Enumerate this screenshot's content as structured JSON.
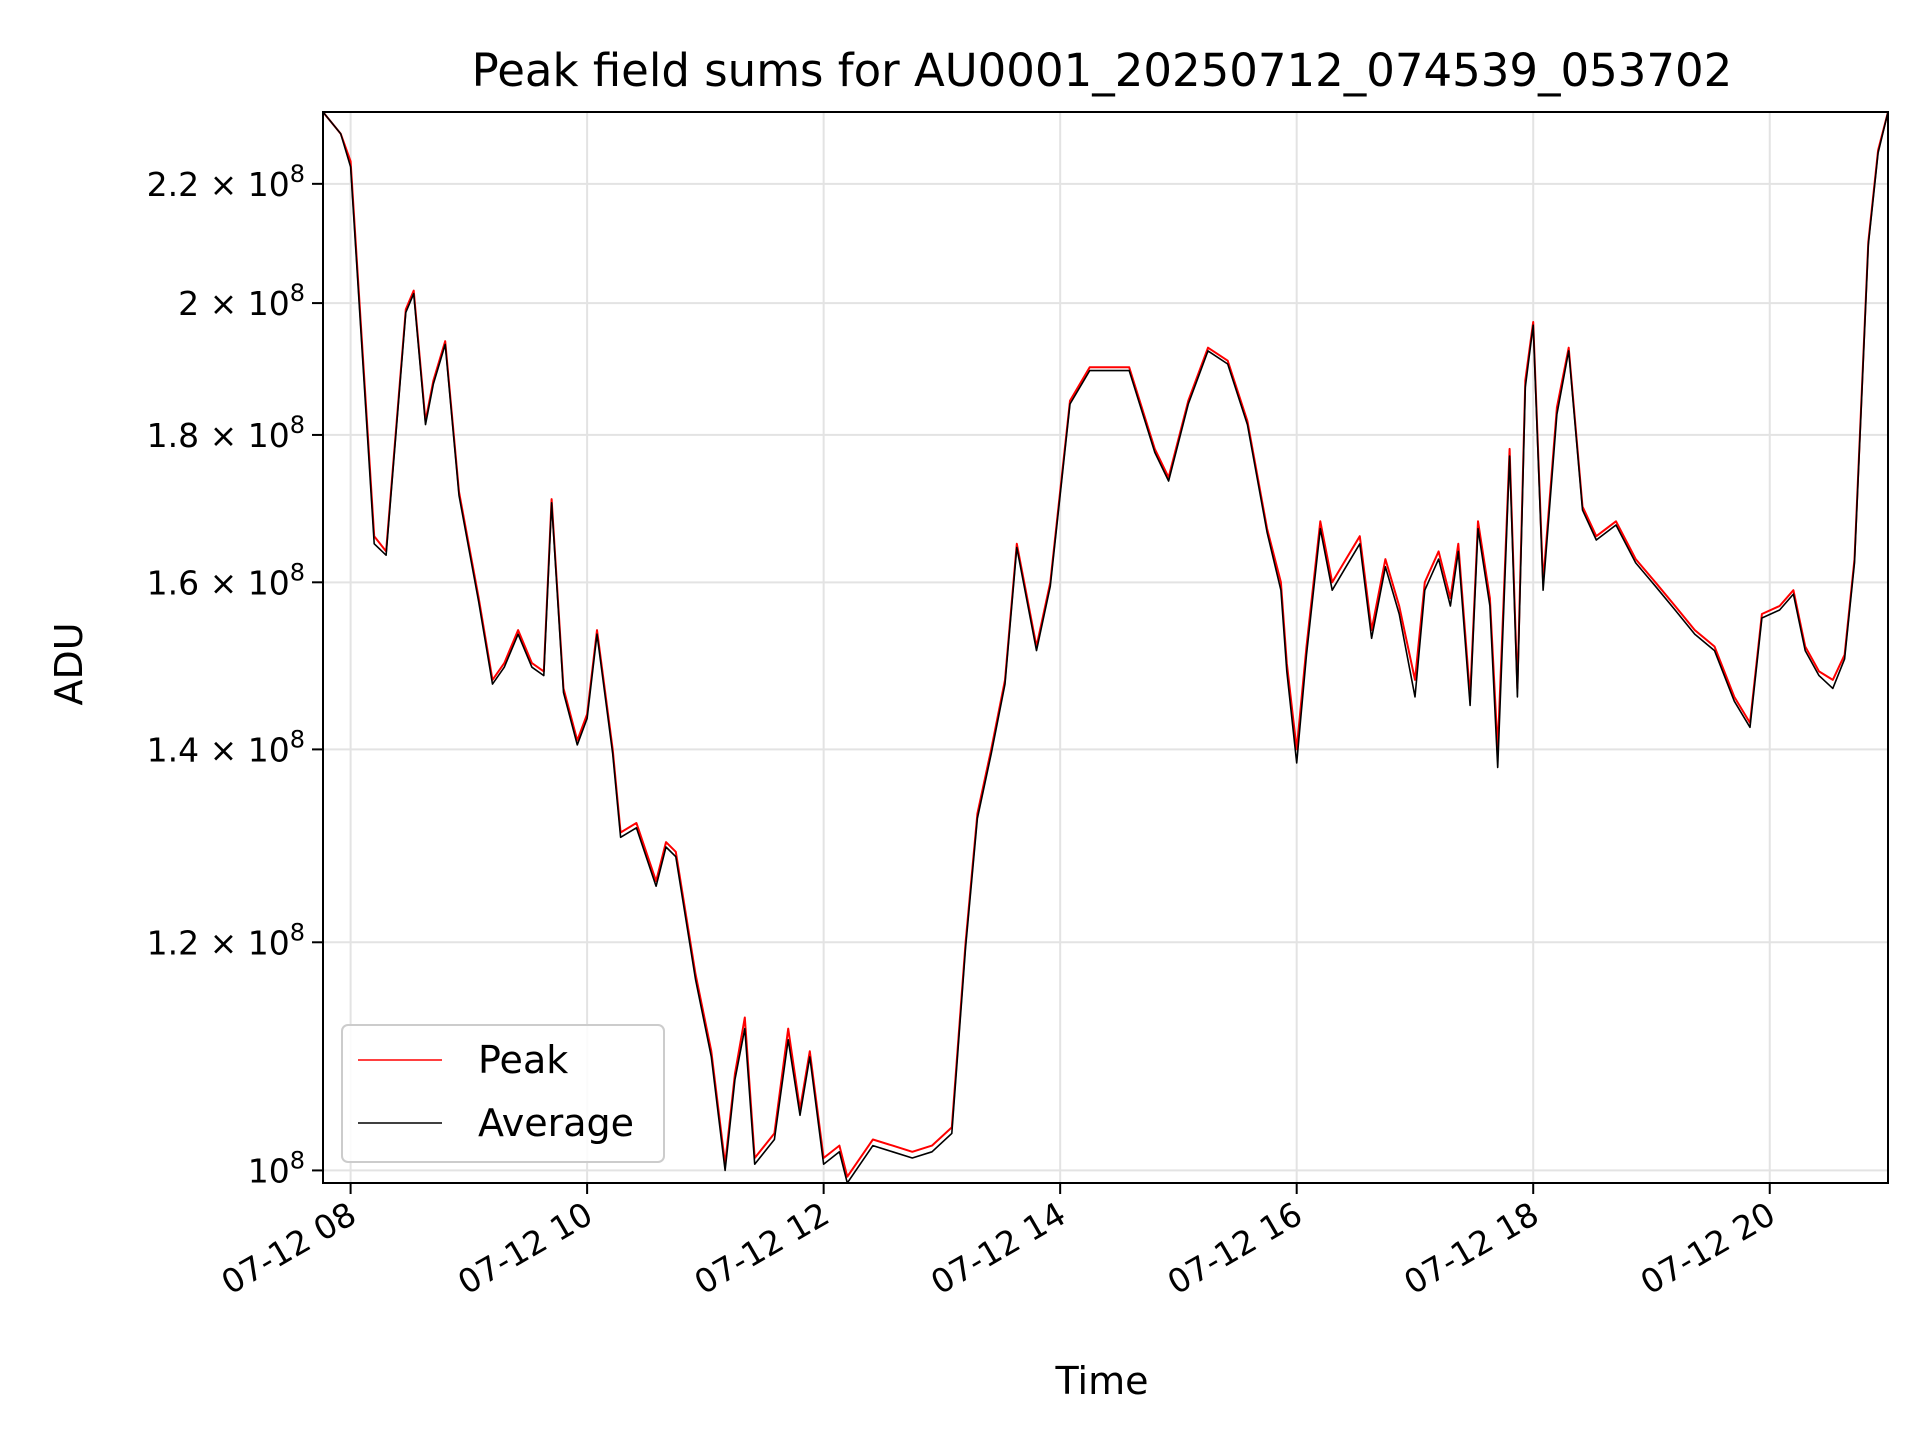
{
  "chart_data": {
    "type": "line",
    "title": "Peak field sums for AU0001_20250712_074539_053702",
    "xlabel": "Time",
    "ylabel": "ADU",
    "yscale": "log",
    "grid": true,
    "legend_placement": "lower-left",
    "xlim": [
      "07-12 07:46",
      "07-12 21:00"
    ],
    "ylim": [
      99000000,
      233000000
    ],
    "x_ticks": [
      {
        "value": "07-12 08:00",
        "label": "07-12 08"
      },
      {
        "value": "07-12 10:00",
        "label": "07-12 10"
      },
      {
        "value": "07-12 12:00",
        "label": "07-12 12"
      },
      {
        "value": "07-12 14:00",
        "label": "07-12 14"
      },
      {
        "value": "07-12 16:00",
        "label": "07-12 16"
      },
      {
        "value": "07-12 18:00",
        "label": "07-12 18"
      },
      {
        "value": "07-12 20:00",
        "label": "07-12 20"
      }
    ],
    "y_ticks": [
      {
        "value": 100000000,
        "mantissa": "",
        "exp": "8"
      },
      {
        "value": 120000000,
        "mantissa": "1.2",
        "exp": "8"
      },
      {
        "value": 140000000,
        "mantissa": "1.4",
        "exp": "8"
      },
      {
        "value": 160000000,
        "mantissa": "1.6",
        "exp": "8"
      },
      {
        "value": 180000000,
        "mantissa": "1.8",
        "exp": "8"
      },
      {
        "value": 200000000,
        "mantissa": "2",
        "exp": "8"
      },
      {
        "value": 220000000,
        "mantissa": "2.2",
        "exp": "8"
      }
    ],
    "series": [
      {
        "name": "Peak",
        "color": "#ff0000",
        "x": [
          "07-12 07:46",
          "07-12 07:55",
          "07-12 08:00",
          "07-12 08:12",
          "07-12 08:18",
          "07-12 08:28",
          "07-12 08:32",
          "07-12 08:38",
          "07-12 08:42",
          "07-12 08:48",
          "07-12 08:55",
          "07-12 09:05",
          "07-12 09:12",
          "07-12 09:18",
          "07-12 09:25",
          "07-12 09:32",
          "07-12 09:38",
          "07-12 09:42",
          "07-12 09:48",
          "07-12 09:55",
          "07-12 10:00",
          "07-12 10:05",
          "07-12 10:13",
          "07-12 10:17",
          "07-12 10:25",
          "07-12 10:35",
          "07-12 10:40",
          "07-12 10:45",
          "07-12 10:55",
          "07-12 11:03",
          "07-12 11:10",
          "07-12 11:15",
          "07-12 11:20",
          "07-12 11:25",
          "07-12 11:35",
          "07-12 11:42",
          "07-12 11:48",
          "07-12 11:53",
          "07-12 12:00",
          "07-12 12:08",
          "07-12 12:12",
          "07-12 12:25",
          "07-12 12:35",
          "07-12 12:45",
          "07-12 12:55",
          "07-12 13:05",
          "07-12 13:12",
          "07-12 13:18",
          "07-12 13:25",
          "07-12 13:32",
          "07-12 13:38",
          "07-12 13:48",
          "07-12 13:55",
          "07-12 14:05",
          "07-12 14:15",
          "07-12 14:25",
          "07-12 14:35",
          "07-12 14:48",
          "07-12 14:55",
          "07-12 15:05",
          "07-12 15:15",
          "07-12 15:25",
          "07-12 15:35",
          "07-12 15:45",
          "07-12 15:52",
          "07-12 15:55",
          "07-12 16:00",
          "07-12 16:05",
          "07-12 16:12",
          "07-12 16:18",
          "07-12 16:25",
          "07-12 16:32",
          "07-12 16:38",
          "07-12 16:45",
          "07-12 16:52",
          "07-12 17:00",
          "07-12 17:05",
          "07-12 17:12",
          "07-12 17:18",
          "07-12 17:22",
          "07-12 17:28",
          "07-12 17:32",
          "07-12 17:38",
          "07-12 17:42",
          "07-12 17:48",
          "07-12 17:52",
          "07-12 17:56",
          "07-12 18:00",
          "07-12 18:05",
          "07-12 18:12",
          "07-12 18:18",
          "07-12 18:25",
          "07-12 18:32",
          "07-12 18:42",
          "07-12 18:52",
          "07-12 19:02",
          "07-12 19:12",
          "07-12 19:22",
          "07-12 19:32",
          "07-12 19:42",
          "07-12 19:50",
          "07-12 19:56",
          "07-12 20:05",
          "07-12 20:12",
          "07-12 20:18",
          "07-12 20:25",
          "07-12 20:32",
          "07-12 20:38",
          "07-12 20:43",
          "07-12 20:50",
          "07-12 20:55",
          "07-12 21:00"
        ],
        "values": [
          233000000,
          229000000,
          224000000,
          166000000,
          164000000,
          199000000,
          202000000,
          182000000,
          188000000,
          194000000,
          172000000,
          158000000,
          148000000,
          150000000,
          154000000,
          150000000,
          149000000,
          171000000,
          147000000,
          141000000,
          144000000,
          154000000,
          140000000,
          131000000,
          132000000,
          126000000,
          130000000,
          129000000,
          117000000,
          110000000,
          100500000,
          108000000,
          113000000,
          101000000,
          103000000,
          112000000,
          105000000,
          110000000,
          101000000,
          102000000,
          99500000,
          102500000,
          102000000,
          101500000,
          102000000,
          103500000,
          120000000,
          133000000,
          140000000,
          148000000,
          165000000,
          152000000,
          160000000,
          185000000,
          190000000,
          190000000,
          190000000,
          178000000,
          174000000,
          185000000,
          193000000,
          191000000,
          182000000,
          167000000,
          160000000,
          150000000,
          140000000,
          152000000,
          168000000,
          160000000,
          163000000,
          166000000,
          154000000,
          163000000,
          157000000,
          148000000,
          160000000,
          164000000,
          158000000,
          165000000,
          146000000,
          168000000,
          158000000,
          140000000,
          178000000,
          147000000,
          188000000,
          197000000,
          160000000,
          184000000,
          193000000,
          170000000,
          166000000,
          168000000,
          163000000,
          160000000,
          157000000,
          154000000,
          152000000,
          146000000,
          143000000,
          156000000,
          157000000,
          159000000,
          152000000,
          149000000,
          148000000,
          151000000,
          163000000,
          210000000,
          226000000,
          233000000
        ]
      },
      {
        "name": "Average",
        "color": "#000000",
        "x": [
          "07-12 07:46",
          "07-12 07:55",
          "07-12 08:00",
          "07-12 08:12",
          "07-12 08:18",
          "07-12 08:28",
          "07-12 08:32",
          "07-12 08:38",
          "07-12 08:42",
          "07-12 08:48",
          "07-12 08:55",
          "07-12 09:05",
          "07-12 09:12",
          "07-12 09:18",
          "07-12 09:25",
          "07-12 09:32",
          "07-12 09:38",
          "07-12 09:42",
          "07-12 09:48",
          "07-12 09:55",
          "07-12 10:00",
          "07-12 10:05",
          "07-12 10:13",
          "07-12 10:17",
          "07-12 10:25",
          "07-12 10:35",
          "07-12 10:40",
          "07-12 10:45",
          "07-12 10:55",
          "07-12 11:03",
          "07-12 11:10",
          "07-12 11:15",
          "07-12 11:20",
          "07-12 11:25",
          "07-12 11:35",
          "07-12 11:42",
          "07-12 11:48",
          "07-12 11:53",
          "07-12 12:00",
          "07-12 12:08",
          "07-12 12:12",
          "07-12 12:25",
          "07-12 12:35",
          "07-12 12:45",
          "07-12 12:55",
          "07-12 13:05",
          "07-12 13:12",
          "07-12 13:18",
          "07-12 13:25",
          "07-12 13:32",
          "07-12 13:38",
          "07-12 13:48",
          "07-12 13:55",
          "07-12 14:05",
          "07-12 14:15",
          "07-12 14:25",
          "07-12 14:35",
          "07-12 14:48",
          "07-12 14:55",
          "07-12 15:05",
          "07-12 15:15",
          "07-12 15:25",
          "07-12 15:35",
          "07-12 15:45",
          "07-12 15:52",
          "07-12 15:55",
          "07-12 16:00",
          "07-12 16:05",
          "07-12 16:12",
          "07-12 16:18",
          "07-12 16:25",
          "07-12 16:32",
          "07-12 16:38",
          "07-12 16:45",
          "07-12 16:52",
          "07-12 17:00",
          "07-12 17:05",
          "07-12 17:12",
          "07-12 17:18",
          "07-12 17:22",
          "07-12 17:28",
          "07-12 17:32",
          "07-12 17:38",
          "07-12 17:42",
          "07-12 17:48",
          "07-12 17:52",
          "07-12 17:56",
          "07-12 18:00",
          "07-12 18:05",
          "07-12 18:12",
          "07-12 18:18",
          "07-12 18:25",
          "07-12 18:32",
          "07-12 18:42",
          "07-12 18:52",
          "07-12 19:02",
          "07-12 19:12",
          "07-12 19:22",
          "07-12 19:32",
          "07-12 19:42",
          "07-12 19:50",
          "07-12 19:56",
          "07-12 20:05",
          "07-12 20:12",
          "07-12 20:18",
          "07-12 20:25",
          "07-12 20:32",
          "07-12 20:38",
          "07-12 20:43",
          "07-12 20:50",
          "07-12 20:55",
          "07-12 21:00"
        ],
        "values": [
          233000000,
          229000000,
          223000000,
          165000000,
          163500000,
          198500000,
          201500000,
          181500000,
          187500000,
          193500000,
          171500000,
          157500000,
          147500000,
          149500000,
          153500000,
          149500000,
          148500000,
          170500000,
          146500000,
          140500000,
          143500000,
          153500000,
          139500000,
          130500000,
          131500000,
          125500000,
          129500000,
          128500000,
          116500000,
          109500000,
          100000000,
          107500000,
          112000000,
          100500000,
          102500000,
          111000000,
          104500000,
          109500000,
          100500000,
          101500000,
          99000000,
          102000000,
          101500000,
          101000000,
          101500000,
          103000000,
          119500000,
          132500000,
          139500000,
          147500000,
          164500000,
          151500000,
          159500000,
          184500000,
          189500000,
          189500000,
          189500000,
          177500000,
          173500000,
          184500000,
          192500000,
          190500000,
          181500000,
          166500000,
          159000000,
          149000000,
          138500000,
          151000000,
          167000000,
          159000000,
          162000000,
          165000000,
          153000000,
          162000000,
          156000000,
          146000000,
          159000000,
          163000000,
          157000000,
          164000000,
          145000000,
          167000000,
          157000000,
          138000000,
          177000000,
          146000000,
          187000000,
          196500000,
          159000000,
          183000000,
          192500000,
          169500000,
          165500000,
          167500000,
          162500000,
          159500000,
          156500000,
          153500000,
          151500000,
          145500000,
          142500000,
          155500000,
          156500000,
          158500000,
          151500000,
          148500000,
          147000000,
          150500000,
          162500000,
          209500000,
          225500000,
          233000000
        ]
      }
    ]
  }
}
